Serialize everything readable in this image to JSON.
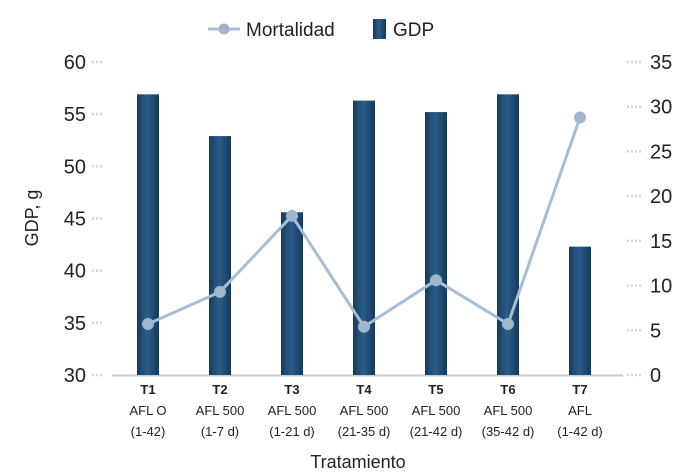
{
  "chart_data": {
    "type": "bar",
    "xlabel": "Tratamiento",
    "ylabel": "GDP, g",
    "categories": [
      {
        "code": "T1",
        "lines": [
          "AFL O",
          "(1-42)"
        ]
      },
      {
        "code": "T2",
        "lines": [
          "AFL 500",
          "(1-7 d)"
        ]
      },
      {
        "code": "T3",
        "lines": [
          "AFL 500",
          "(1-21 d)"
        ]
      },
      {
        "code": "T4",
        "lines": [
          "AFL 500",
          "(21-35 d)"
        ]
      },
      {
        "code": "T5",
        "lines": [
          "AFL 500",
          "(21-42 d)"
        ]
      },
      {
        "code": "T6",
        "lines": [
          "AFL 500",
          "(35-42 d)"
        ]
      },
      {
        "code": "T7",
        "lines": [
          "AFL",
          "(1-42 d)"
        ]
      }
    ],
    "ylim_left": [
      30,
      60
    ],
    "yticks_left": [
      30,
      35,
      40,
      45,
      50,
      55,
      60
    ],
    "ylim_right": [
      0,
      35
    ],
    "yticks_right": [
      0,
      5,
      10,
      15,
      20,
      25,
      30,
      35
    ],
    "series": [
      {
        "name": "GDP",
        "type": "bar",
        "axis": "left",
        "values": [
          56.9,
          52.9,
          45.6,
          56.3,
          55.2,
          56.9,
          42.3
        ]
      },
      {
        "name": "Mortalidad",
        "type": "line",
        "axis": "right",
        "values": [
          5.7,
          9.3,
          17.8,
          5.4,
          10.6,
          5.7,
          28.8
        ]
      }
    ],
    "legend_position": "top-center",
    "colors": {
      "bar": "#1f4a73",
      "bar_dark": "#163a5c",
      "line": "#a6bed3",
      "marker": "#9fb7cc",
      "axis": "#b9cfdf",
      "tick_dots": "#c9dae7"
    }
  }
}
